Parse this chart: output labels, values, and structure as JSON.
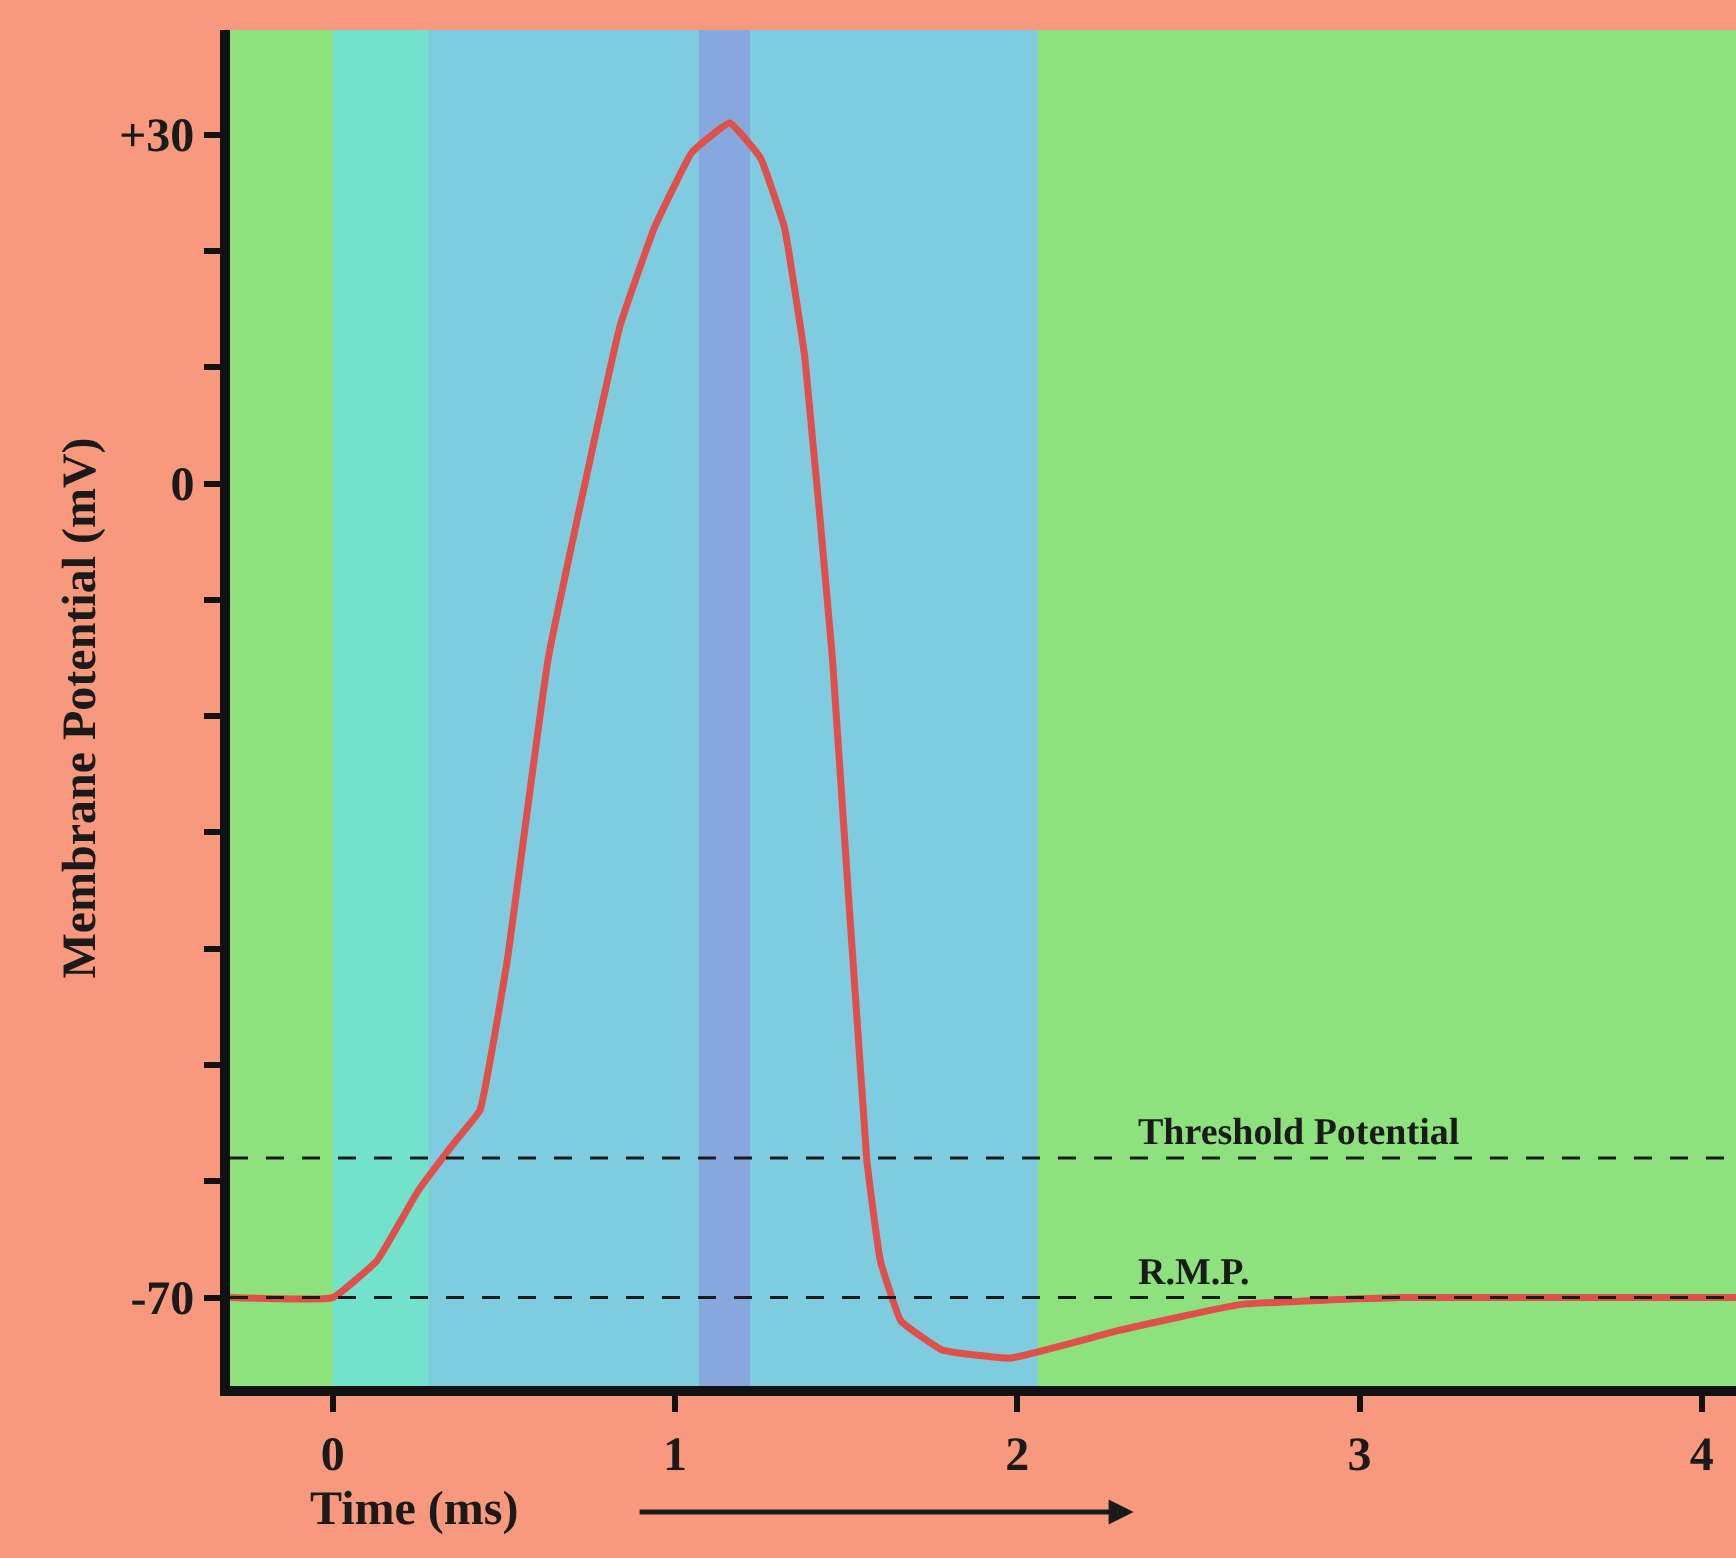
{
  "chart_data": {
    "type": "line",
    "xlabel": "Time (ms)",
    "ylabel": "Membrane Potential (mV)",
    "xlim": [
      -0.3,
      4.1
    ],
    "ylim": [
      -77.6,
      39
    ],
    "xticks": [
      0,
      1,
      2,
      3,
      4
    ],
    "yticks": [
      {
        "value": 30,
        "label": "+30"
      },
      {
        "value": 20,
        "label": null
      },
      {
        "value": 10,
        "label": null
      },
      0,
      {
        "value": -10,
        "label": null
      },
      {
        "value": -20,
        "label": null
      },
      {
        "value": -30,
        "label": null
      },
      {
        "value": -40,
        "label": null
      },
      {
        "value": -50,
        "label": null
      },
      {
        "value": -60,
        "label": null
      },
      -70
    ],
    "marker": "none",
    "line_style": "solid",
    "series": [
      {
        "color": "#e0504a",
        "x": [
          -0.3,
          0,
          0.13,
          0.25,
          0.36,
          0.43,
          0.51,
          0.63,
          0.84,
          0.94,
          1.05,
          1.16,
          1.25,
          1.32,
          1.38,
          1.46,
          1.56,
          1.6,
          1.66,
          1.78,
          1.98,
          2.3,
          2.65,
          3.12,
          4.1
        ],
        "values": [
          -70,
          -70,
          -66.8,
          -60.8,
          -56.5,
          -53.9,
          -41,
          -15,
          13.6,
          22,
          28.5,
          31,
          28,
          22,
          10.7,
          -15,
          -58,
          -66.8,
          -72,
          -74.5,
          -75.2,
          -72.8,
          -70.6,
          -70,
          -70
        ]
      }
    ],
    "ref_lines": [
      {
        "axis": "y",
        "value": -58,
        "label": "Threshold Potential",
        "color": "#1a1a1a",
        "line_style": "dashed"
      },
      {
        "axis": "y",
        "value": -70,
        "label": "R.M.P.",
        "color": "#1a1a1a",
        "line_style": "dashed"
      }
    ],
    "bands": [
      {
        "axis": "x",
        "from": 0,
        "to": 0.28,
        "color": "#72e2cc"
      },
      {
        "axis": "x",
        "from": 0.28,
        "to": 2.06,
        "color": "#7fcce0"
      },
      {
        "axis": "x",
        "from": 1.07,
        "to": 1.22,
        "color": "#86a8dc"
      }
    ]
  }
}
